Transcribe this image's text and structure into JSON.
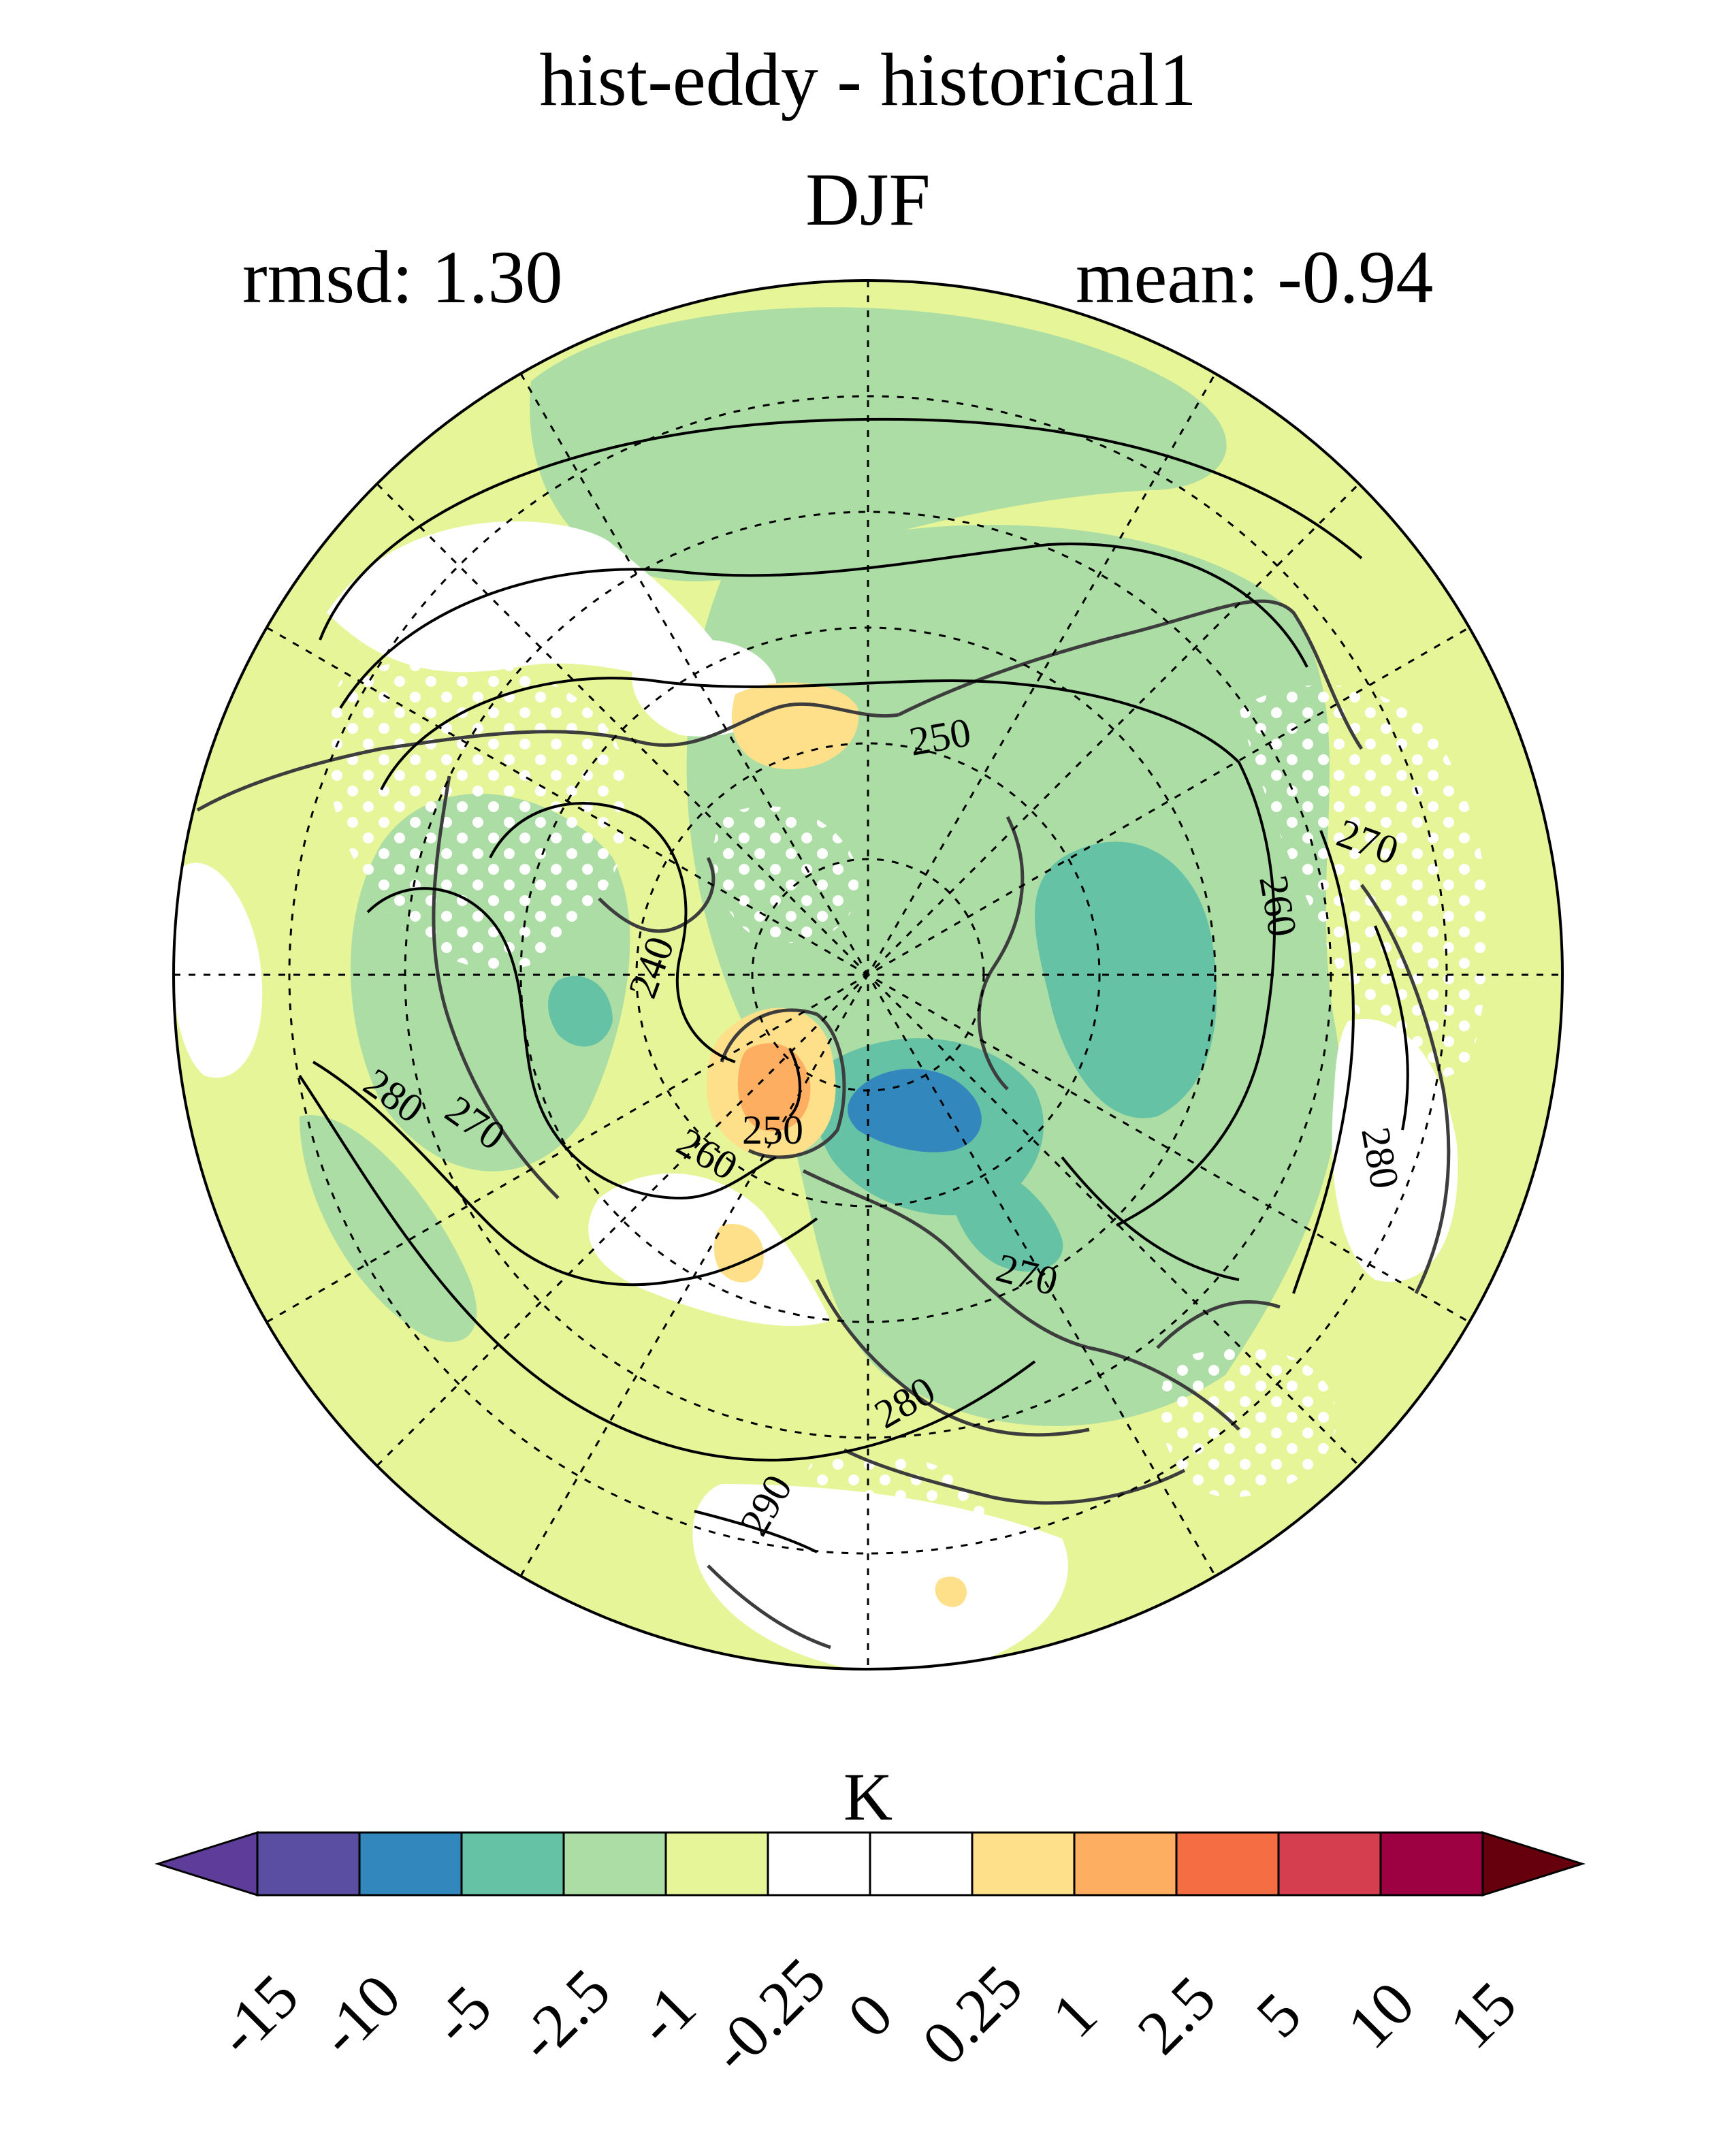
{
  "header": {
    "title": "hist-eddy - historical1",
    "season": "DJF",
    "rmsd_text": "rmsd: 1.30",
    "mean_text": "mean: -0.94"
  },
  "colorbar": {
    "unit": "K",
    "ticks": [
      "-15",
      "-10",
      "-5",
      "-2.5",
      "-1",
      "-0.25",
      "0",
      "0.25",
      "1",
      "2.5",
      "5",
      "10",
      "15"
    ],
    "colors": [
      "#5e3c99",
      "#5a4ea2",
      "#3288bd",
      "#66c2a5",
      "#abdda4",
      "#e6f598",
      "#ffffff",
      "#ffffff",
      "#fee08b",
      "#fdae61",
      "#f46d43",
      "#d53e4f",
      "#9e0142",
      "#67000d"
    ]
  },
  "contour_labels": [
    "250",
    "260",
    "270",
    "280",
    "240",
    "290"
  ],
  "map": {
    "projection": "north polar stereographic",
    "stippling": true,
    "gridlines": "dashed"
  }
}
